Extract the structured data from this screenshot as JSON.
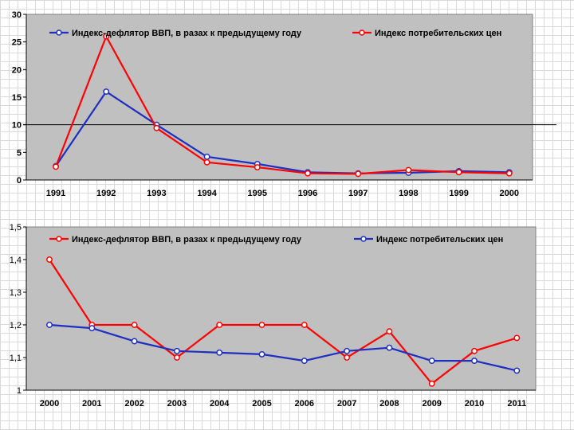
{
  "colors": {
    "red": "#ff0000",
    "blue": "#1f2fbf",
    "plot_bg": "#c0c0c0",
    "grid": "#000000"
  },
  "chart_data": [
    {
      "type": "line",
      "categories": [
        "1991",
        "1992",
        "1993",
        "1994",
        "1995",
        "1996",
        "1997",
        "1998",
        "1999",
        "2000"
      ],
      "series": [
        {
          "name": "Индекс-дефлятор ВВП, в разах к предыдущему году",
          "color": "blue",
          "values": [
            2.5,
            16,
            10,
            4.2,
            2.9,
            1.4,
            1.2,
            1.3,
            1.6,
            1.4
          ]
        },
        {
          "name": "Индекс потребительских цен",
          "color": "red",
          "values": [
            2.4,
            26,
            9.4,
            3.2,
            2.3,
            1.2,
            1.1,
            1.8,
            1.4,
            1.2
          ]
        }
      ],
      "yticks": [
        "0",
        "5",
        "10",
        "15",
        "20",
        "25",
        "30"
      ],
      "ylim": [
        0,
        30
      ],
      "reference_line": 10,
      "legend_position": "top"
    },
    {
      "type": "line",
      "categories": [
        "2000",
        "2001",
        "2002",
        "2003",
        "2004",
        "2005",
        "2006",
        "2007",
        "2008",
        "2009",
        "2010",
        "2011"
      ],
      "series": [
        {
          "name": "Индекс-дефлятор ВВП, в разах к предыдущему году",
          "color": "red",
          "values": [
            1.4,
            1.2,
            1.2,
            1.1,
            1.2,
            1.2,
            1.2,
            1.1,
            1.18,
            1.02,
            1.12,
            1.16
          ]
        },
        {
          "name": "Индекс потребительских цен",
          "color": "blue",
          "values": [
            1.2,
            1.19,
            1.15,
            1.12,
            1.115,
            1.11,
            1.09,
            1.12,
            1.13,
            1.09,
            1.09,
            1.06
          ]
        }
      ],
      "yticks": [
        "1",
        "1,1",
        "1,2",
        "1,3",
        "1,4",
        "1,5"
      ],
      "ylim": [
        1,
        1.5
      ],
      "legend_position": "top"
    }
  ]
}
